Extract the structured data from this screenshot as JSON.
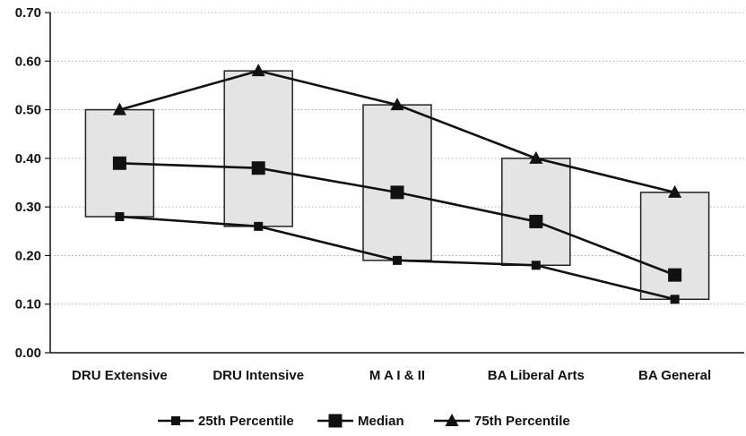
{
  "chart_data": {
    "type": "line",
    "categories": [
      "DRU Extensive",
      "DRU Intensive",
      "M A I & II",
      "BA Liberal Arts",
      "BA General"
    ],
    "series": [
      {
        "name": "25th Percentile",
        "marker": "small-square",
        "values": [
          0.28,
          0.26,
          0.19,
          0.18,
          0.11
        ]
      },
      {
        "name": "Median",
        "marker": "large-square",
        "values": [
          0.39,
          0.38,
          0.33,
          0.27,
          0.16
        ]
      },
      {
        "name": "75th Percentile",
        "marker": "triangle",
        "values": [
          0.5,
          0.58,
          0.51,
          0.4,
          0.33
        ]
      }
    ],
    "range_boxes": true,
    "ylim": [
      0,
      0.7
    ],
    "y_ticks": [
      "0.00",
      "0.10",
      "0.20",
      "0.30",
      "0.40",
      "0.50",
      "0.60",
      "0.70"
    ],
    "grid": "horizontal dotted",
    "legend_position": "bottom",
    "colors": {
      "line": "#111111",
      "box_fill": "#e4e4e4",
      "box_stroke": "#222222"
    }
  }
}
